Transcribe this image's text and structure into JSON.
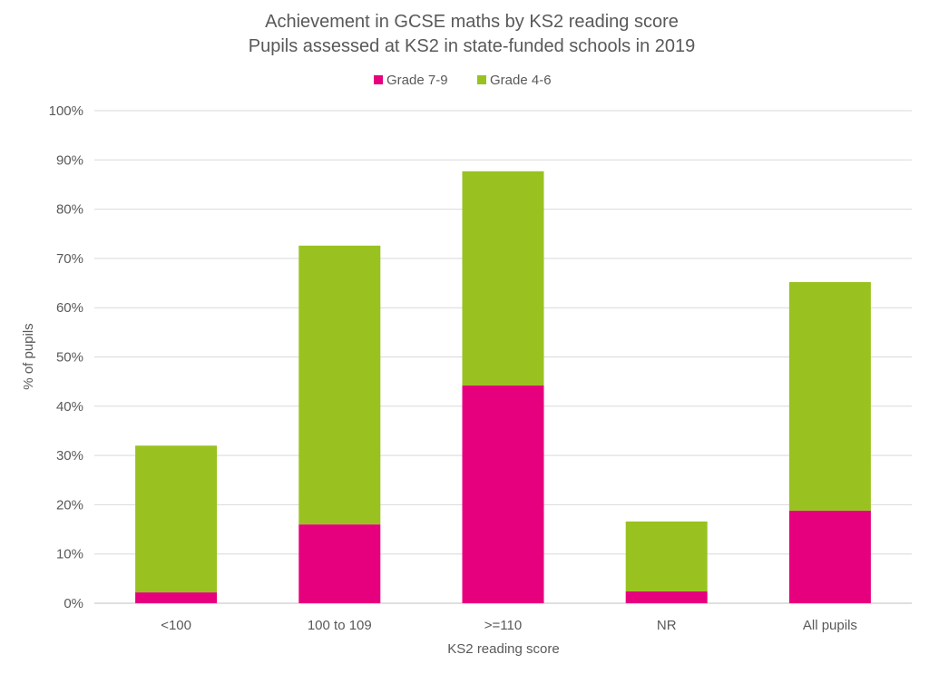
{
  "chart_data": {
    "type": "bar",
    "stacked": true,
    "title": [
      "Achievement in GCSE maths by KS2 reading score",
      "Pupils assessed at KS2 in state-funded schools in 2019"
    ],
    "xlabel": "KS2 reading score",
    "ylabel": "% of pupils",
    "ylim": [
      0,
      100
    ],
    "yticks": [
      "0%",
      "10%",
      "20%",
      "30%",
      "40%",
      "50%",
      "60%",
      "70%",
      "80%",
      "90%",
      "100%"
    ],
    "categories": [
      "<100",
      "100 to 109",
      ">=110",
      "NR",
      "All pupils"
    ],
    "series": [
      {
        "name": "Grade 7-9",
        "color": "#E6007E",
        "values": [
          2.2,
          16.0,
          44.2,
          2.4,
          18.8
        ]
      },
      {
        "name": "Grade 4-6",
        "color": "#99C221",
        "values": [
          29.8,
          56.6,
          43.5,
          14.2,
          46.4
        ]
      }
    ],
    "grid": true,
    "legend": "top-center"
  }
}
